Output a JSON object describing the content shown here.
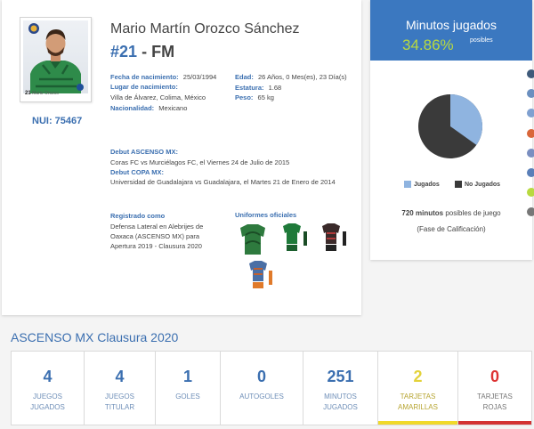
{
  "player": {
    "name": "Mario Martín Orozco Sánchez",
    "number": "#21",
    "separator": "-",
    "position": "FM",
    "nui_label": "NUI:",
    "nui_value": "75467",
    "photo_number": "21",
    "photo_caption": "Mario Orozco"
  },
  "personal": {
    "birth_label": "Fecha de nacimiento:",
    "birth_value": "25/03/1994",
    "place_label": "Lugar de nacimiento:",
    "place_value": "Villa de Álvarez, Colima, México",
    "nationality_label": "Nacionalidad:",
    "nationality_value": "Mexicano",
    "age_label": "Edad:",
    "age_value": "26 Años, 0 Mes(es), 23 Día(s)",
    "height_label": "Estatura:",
    "height_value": "1.68",
    "weight_label": "Peso:",
    "weight_value": "65 kg"
  },
  "debut": {
    "ascenso_label": "Debut ASCENSO MX:",
    "ascenso_value": "Coras FC vs Murciélagos FC, el Viernes 24 de Julio de 2015",
    "copa_label": "Debut COPA MX:",
    "copa_value": "Universidad de Guadalajara vs Guadalajara, el Martes 21 de Enero de 2014"
  },
  "registered": {
    "label": "Registrado como",
    "line1": "Defensa Lateral en Alebrijes de",
    "line2": "Oaxaca (ASCENSO MX) para",
    "line3": "Apertura 2019 - Clausura 2020"
  },
  "uniforms": {
    "label": "Uniformes oficiales"
  },
  "minutes": {
    "title": "Minutos jugados",
    "percent": "34.86%",
    "percent_suffix": "posibles",
    "legend_played": "Jugados",
    "legend_not_played": "No Jugados",
    "possible_minutes": "720",
    "possible_text_bold": "minutos",
    "possible_text": "posibles de juego",
    "phase": "(Fase de Calificación)",
    "played_fraction": 0.3486,
    "color_played": "#8fb4e0",
    "color_not_played": "#3a3a3a"
  },
  "season": {
    "title": "ASCENSO MX Clausura 2020",
    "stats": [
      {
        "value": "4",
        "label1": "JUEGOS",
        "label2": "JUGADOS"
      },
      {
        "value": "4",
        "label1": "JUEGOS",
        "label2": "TITULAR"
      },
      {
        "value": "1",
        "label1": "GOLES",
        "label2": ""
      },
      {
        "value": "0",
        "label1": "AUTOGOLES",
        "label2": ""
      },
      {
        "value": "251",
        "label1": "MINUTOS",
        "label2": "JUGADOS"
      },
      {
        "value": "2",
        "label1": "TARJETAS",
        "label2": "AMARILLAS"
      },
      {
        "value": "0",
        "label1": "TARJETAS",
        "label2": "ROJAS"
      }
    ]
  },
  "colors": {
    "brand_blue": "#3b6fb0",
    "header_blue": "#3b78c0",
    "accent_green": "#b8d940",
    "yellow_card": "#f0d92a",
    "red_card": "#d33333"
  }
}
